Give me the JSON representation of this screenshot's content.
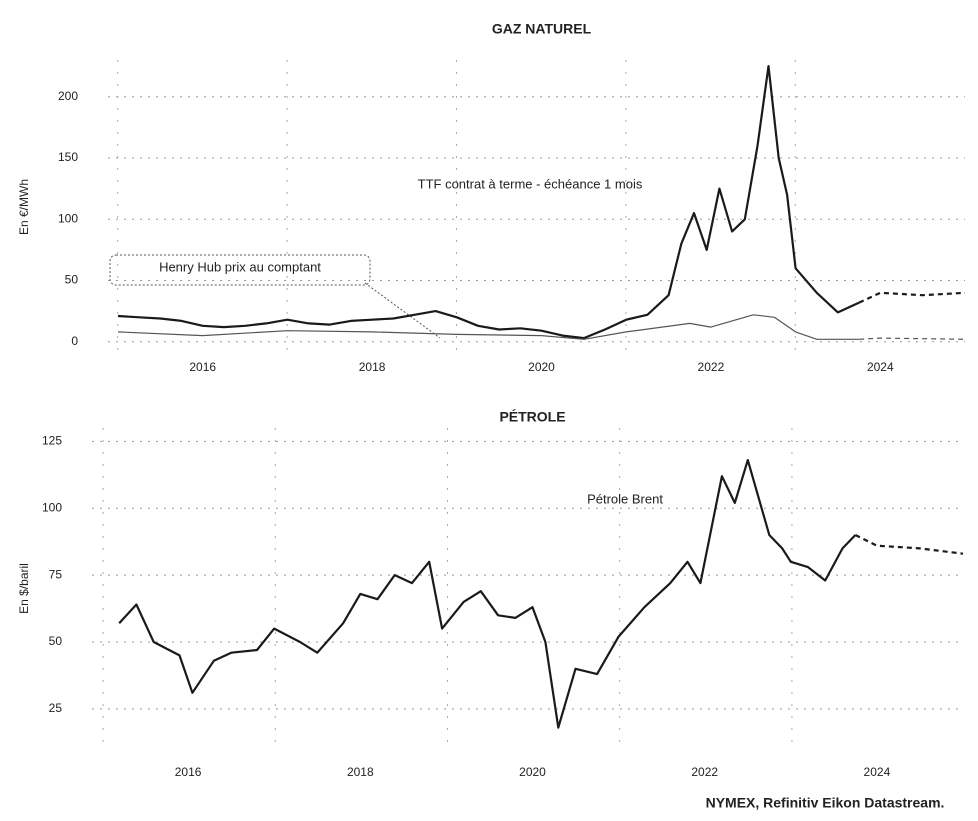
{
  "chart_data": [
    {
      "type": "line",
      "title": "GAZ NATUREL",
      "ylabel": "En €/MWh",
      "xlim": [
        2015,
        2025
      ],
      "xticks": [
        2016,
        2018,
        2020,
        2022,
        2024
      ],
      "ylim": [
        -10,
        230
      ],
      "yticks": [
        0,
        50,
        100,
        150,
        200
      ],
      "grid": true,
      "series": [
        {
          "name": "TTF contrat à terme - échéance 1 mois",
          "color": "#1a1a1a",
          "width": 2.2,
          "x": [
            2015,
            2015.25,
            2015.5,
            2015.75,
            2016,
            2016.25,
            2016.5,
            2016.75,
            2017,
            2017.25,
            2017.5,
            2017.75,
            2018,
            2018.25,
            2018.5,
            2018.75,
            2019,
            2019.25,
            2019.5,
            2019.75,
            2020,
            2020.25,
            2020.5,
            2020.75,
            2021,
            2021.25,
            2021.5,
            2021.65,
            2021.8,
            2021.95,
            2022.1,
            2022.25,
            2022.4,
            2022.55,
            2022.68,
            2022.8,
            2022.9,
            2023,
            2023.25,
            2023.5,
            2023.75
          ],
          "values": [
            21,
            20,
            19,
            17,
            13,
            12,
            13,
            15,
            18,
            15,
            14,
            17,
            18,
            19,
            22,
            25,
            20,
            13,
            10,
            11,
            9,
            5,
            3,
            10,
            18,
            22,
            38,
            80,
            105,
            75,
            125,
            90,
            100,
            160,
            225,
            150,
            120,
            60,
            40,
            24,
            32
          ],
          "forecast_x": [
            2023.75,
            2024,
            2024.5,
            2025
          ],
          "forecast_values": [
            32,
            40,
            38,
            40
          ]
        },
        {
          "name": "Henry Hub prix au comptant",
          "color": "#555555",
          "width": 1.2,
          "x": [
            2015,
            2016,
            2017,
            2018,
            2019,
            2020,
            2020.5,
            2021,
            2021.75,
            2022,
            2022.5,
            2022.75,
            2023,
            2023.25,
            2023.75
          ],
          "values": [
            8,
            5,
            9,
            8,
            6,
            5,
            2,
            8,
            15,
            12,
            22,
            20,
            8,
            2,
            2
          ],
          "forecast_x": [
            2023.75,
            2024,
            2025
          ],
          "forecast_values": [
            2,
            3,
            2
          ]
        }
      ]
    },
    {
      "type": "line",
      "title": "PÉTROLE",
      "ylabel": "En $/baril",
      "xlim": [
        2015,
        2025
      ],
      "xticks": [
        2016,
        2018,
        2020,
        2022,
        2024
      ],
      "ylim": [
        10,
        130
      ],
      "yticks": [
        25,
        50,
        75,
        100,
        125
      ],
      "grid": true,
      "series": [
        {
          "name": "Pétrole Brent",
          "color": "#1a1a1a",
          "width": 2.2,
          "x": [
            2015.2,
            2015.4,
            2015.6,
            2015.9,
            2016.05,
            2016.3,
            2016.5,
            2016.8,
            2017,
            2017.3,
            2017.5,
            2017.8,
            2018,
            2018.2,
            2018.4,
            2018.6,
            2018.8,
            2018.95,
            2019.2,
            2019.4,
            2019.6,
            2019.8,
            2020,
            2020.15,
            2020.3,
            2020.5,
            2020.75,
            2021,
            2021.3,
            2021.6,
            2021.8,
            2021.95,
            2022.2,
            2022.35,
            2022.5,
            2022.75,
            2022.9,
            2023,
            2023.2,
            2023.4,
            2023.6,
            2023.75
          ],
          "values": [
            57,
            64,
            50,
            45,
            31,
            43,
            46,
            47,
            55,
            50,
            46,
            57,
            68,
            66,
            75,
            72,
            80,
            55,
            65,
            69,
            60,
            59,
            63,
            50,
            18,
            40,
            38,
            52,
            63,
            72,
            80,
            72,
            112,
            102,
            118,
            90,
            85,
            80,
            78,
            73,
            85,
            90
          ],
          "forecast_x": [
            2023.75,
            2024,
            2024.5,
            2025
          ],
          "forecast_values": [
            90,
            86,
            85,
            83
          ]
        }
      ]
    }
  ],
  "source": "NYMEX, Refinitiv Eikon Datastream."
}
